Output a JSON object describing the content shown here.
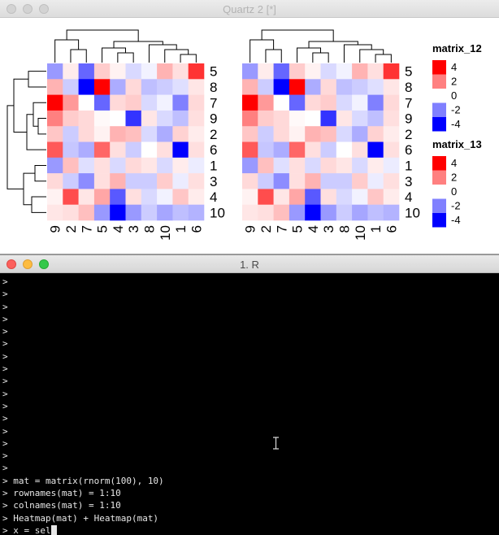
{
  "quartz_window": {
    "title": "Quartz 2 [*]"
  },
  "terminal_window": {
    "title": "1. R",
    "prompt": ">",
    "lines": [
      "",
      "",
      "",
      "",
      "",
      "",
      "",
      "",
      "",
      "",
      "",
      "",
      "",
      "",
      "",
      "",
      "mat = matrix(rnorm(100), 10)",
      "rownames(mat) = 1:10",
      "colnames(mat) = 1:10",
      "Heatmap(mat) + Heatmap(mat)",
      "x = sel"
    ]
  },
  "chart_data": {
    "type": "heatmap",
    "panels": [
      {
        "name": "matrix_12",
        "row_labels": [
          "5",
          "8",
          "7",
          "9",
          "2",
          "6",
          "1",
          "3",
          "4",
          "10"
        ],
        "col_labels": [
          "9",
          "2",
          "7",
          "5",
          "4",
          "3",
          "8",
          "10",
          "1",
          "6"
        ]
      },
      {
        "name": "matrix_13",
        "row_labels": [
          "5",
          "8",
          "7",
          "9",
          "2",
          "6",
          "1",
          "3",
          "4",
          "10"
        ],
        "col_labels": [
          "9",
          "2",
          "7",
          "5",
          "4",
          "3",
          "8",
          "10",
          "1",
          "6"
        ]
      }
    ],
    "values": [
      [
        -1.6,
        0.3,
        -2.4,
        0.8,
        0.2,
        -0.6,
        -0.2,
        1.2,
        0.5,
        3.2
      ],
      [
        1.2,
        -0.8,
        -4.2,
        4.2,
        -1.3,
        0.6,
        -1.0,
        -0.8,
        -0.5,
        0.4
      ],
      [
        4.2,
        1.6,
        0.0,
        -2.4,
        0.6,
        0.8,
        -0.6,
        -0.2,
        -2.0,
        0.6
      ],
      [
        2.0,
        0.8,
        0.6,
        0.1,
        0.0,
        -3.2,
        0.4,
        -0.6,
        -1.0,
        0.5
      ],
      [
        0.9,
        -0.8,
        0.6,
        0.2,
        1.2,
        1.0,
        -0.6,
        -1.3,
        0.7,
        0.3
      ],
      [
        2.6,
        -0.9,
        -1.3,
        2.4,
        0.5,
        -0.8,
        0.0,
        0.5,
        -4.0,
        0.5
      ],
      [
        -1.6,
        1.0,
        -0.5,
        0.5,
        -0.6,
        0.6,
        0.4,
        -0.6,
        0.3,
        -0.3
      ],
      [
        0.6,
        -0.8,
        -1.8,
        0.5,
        1.2,
        -0.8,
        -0.8,
        0.8,
        -0.3,
        0.5
      ],
      [
        0.2,
        2.8,
        0.4,
        1.4,
        -2.6,
        0.5,
        -0.6,
        -0.2,
        0.9,
        0.3
      ],
      [
        0.4,
        0.5,
        1.0,
        -1.6,
        -4.4,
        -1.6,
        -0.8,
        -1.4,
        -1.0,
        -1.2
      ]
    ],
    "color_scale": {
      "low": -4,
      "mid": 0,
      "high": 4,
      "low_color": "#0000ff",
      "mid_color": "#ffffff",
      "high_color": "#ff0000"
    },
    "legends": [
      {
        "title": "matrix_12",
        "labels": [
          "4",
          "2",
          "0",
          "-2",
          "-4"
        ],
        "values": [
          4,
          2,
          0,
          -2,
          -4
        ]
      },
      {
        "title": "matrix_13",
        "labels": [
          "4",
          "2",
          "0",
          "-2",
          "-4"
        ],
        "values": [
          4,
          2,
          0,
          -2,
          -4
        ]
      }
    ]
  }
}
